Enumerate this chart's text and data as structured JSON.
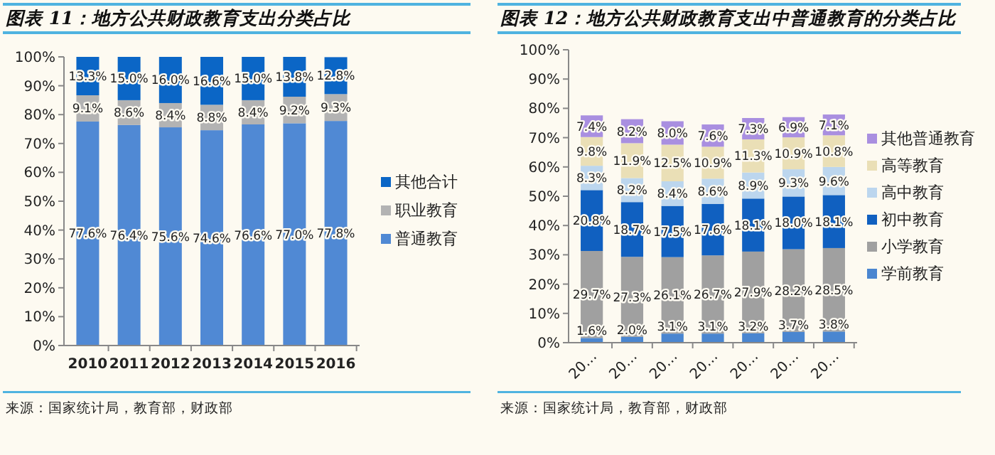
{
  "chart_data": [
    {
      "type": "bar",
      "stacked": true,
      "title": "图表 11：地方公共财政教育支出分类占比",
      "categories": [
        "2010",
        "2011",
        "2012",
        "2013",
        "2014",
        "2015",
        "2016"
      ],
      "series": [
        {
          "name": "普通教育",
          "color": "#5089d4",
          "values": [
            77.6,
            76.4,
            75.6,
            74.6,
            76.6,
            77.0,
            77.8
          ],
          "value_labels": [
            "77.6%",
            "76.4%",
            "75.6%",
            "74.6%",
            "76.6%",
            "77.0%",
            "77.8%"
          ]
        },
        {
          "name": "职业教育",
          "color": "#b3b3b3",
          "values": [
            9.1,
            8.6,
            8.4,
            8.8,
            8.4,
            9.2,
            9.3
          ],
          "value_labels": [
            "9.1%",
            "8.6%",
            "8.4%",
            "8.8%",
            "8.4%",
            "9.2%",
            "9.3%"
          ]
        },
        {
          "name": "其他合计",
          "color": "#0b66c6",
          "values": [
            13.3,
            15.0,
            16.0,
            16.6,
            15.0,
            13.8,
            12.8
          ],
          "value_labels": [
            "13.3%",
            "15.0%",
            "16.0%",
            "16.6%",
            "15.0%",
            "13.8%",
            "12.8%"
          ]
        }
      ],
      "ylim": [
        0,
        100
      ],
      "yticks": [
        {
          "value": 0,
          "label": "0%"
        },
        {
          "value": 10,
          "label": "10%"
        },
        {
          "value": 20,
          "label": "20%"
        },
        {
          "value": 30,
          "label": "30%"
        },
        {
          "value": 40,
          "label": "40%"
        },
        {
          "value": 50,
          "label": "50%"
        },
        {
          "value": 60,
          "label": "60%"
        },
        {
          "value": 70,
          "label": "70%"
        },
        {
          "value": 80,
          "label": "80%"
        },
        {
          "value": 90,
          "label": "90%"
        },
        {
          "value": 100,
          "label": "100%"
        }
      ],
      "grid": false,
      "legend": "right",
      "annotations": [
        "来源：国家统计局，教育部，财政部"
      ]
    },
    {
      "type": "bar",
      "stacked": true,
      "title": "图表 12：地方公共财政教育支出中普通教育的分类占比",
      "categories": [
        "20…",
        "20…",
        "20…",
        "20…",
        "20…",
        "20…",
        "20…"
      ],
      "series": [
        {
          "name": "学前教育",
          "color": "#4a86d0",
          "values": [
            1.6,
            2.0,
            3.1,
            3.1,
            3.2,
            3.7,
            3.8
          ],
          "value_labels": [
            "1.6%",
            "2.0%",
            "3.1%",
            "3.1%",
            "3.2%",
            "3.7%",
            "3.8%"
          ]
        },
        {
          "name": "小学教育",
          "color": "#a0a0a0",
          "values": [
            29.7,
            27.3,
            26.1,
            26.7,
            27.9,
            28.2,
            28.5
          ],
          "value_labels": [
            "29.7%",
            "27.3%",
            "26.1%",
            "26.7%",
            "27.9%",
            "28.2%",
            "28.5%"
          ]
        },
        {
          "name": "初中教育",
          "color": "#1060c0",
          "values": [
            20.8,
            18.7,
            17.5,
            17.6,
            18.1,
            18.0,
            18.1
          ],
          "value_labels": [
            "20.8%",
            "18.7%",
            "17.5%",
            "17.6%",
            "18.1%",
            "18.0%",
            "18.1%"
          ]
        },
        {
          "name": "高中教育",
          "color": "#bcd6ee",
          "values": [
            8.3,
            8.2,
            8.4,
            8.6,
            8.9,
            9.3,
            9.6
          ],
          "value_labels": [
            "8.3%",
            "8.2%",
            "8.4%",
            "8.6%",
            "8.9%",
            "9.3%",
            "9.6%"
          ]
        },
        {
          "name": "高等教育",
          "color": "#eadfb6",
          "values": [
            9.8,
            11.9,
            12.5,
            10.9,
            11.3,
            10.9,
            10.8
          ],
          "value_labels": [
            "9.8%",
            "11.9%",
            "12.5%",
            "10.9%",
            "11.3%",
            "10.9%",
            "10.8%"
          ]
        },
        {
          "name": "其他普通教育",
          "color": "#a98fe0",
          "values": [
            7.4,
            8.2,
            8.0,
            7.6,
            7.3,
            6.9,
            7.1
          ],
          "value_labels": [
            "7.4%",
            "8.2%",
            "8.0%",
            "7.6%",
            "7.3%",
            "6.9%",
            "7.1%"
          ]
        }
      ],
      "ylim": [
        0,
        100
      ],
      "yticks": [
        {
          "value": 0,
          "label": "0%"
        },
        {
          "value": 10,
          "label": "10%"
        },
        {
          "value": 20,
          "label": "20%"
        },
        {
          "value": 30,
          "label": "30%"
        },
        {
          "value": 40,
          "label": "40%"
        },
        {
          "value": 50,
          "label": "50%"
        },
        {
          "value": 60,
          "label": "60%"
        },
        {
          "value": 70,
          "label": "70%"
        },
        {
          "value": 80,
          "label": "80%"
        },
        {
          "value": 90,
          "label": "90%"
        },
        {
          "value": 100,
          "label": "100%"
        }
      ],
      "grid": false,
      "legend": "right",
      "annotations": [
        "来源：国家统计局，教育部，财政部"
      ]
    }
  ]
}
